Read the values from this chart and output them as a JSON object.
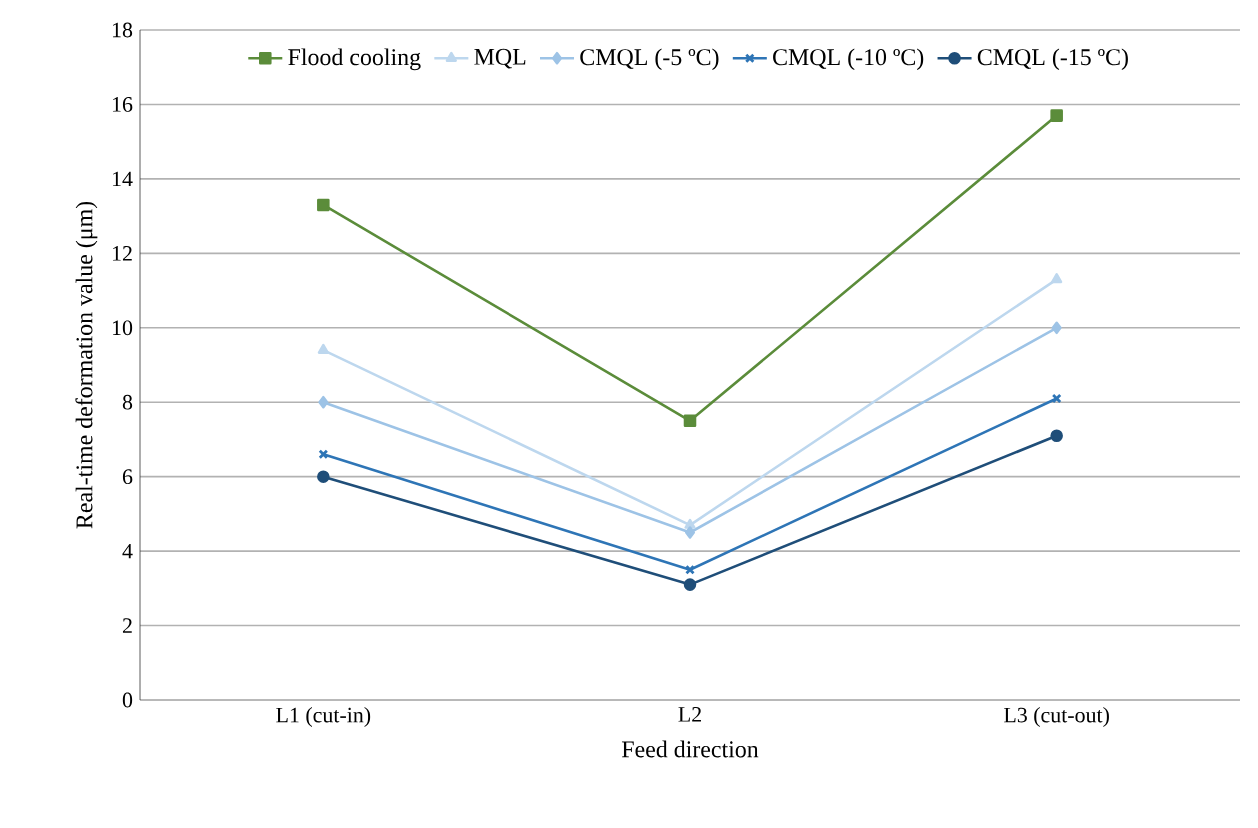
{
  "chart_data": {
    "type": "line",
    "xlabel": "Feed direction",
    "ylabel": "Real-time deformation value (μm)",
    "categories": [
      "L1 (cut-in)",
      "L2",
      "L3 (cut-out)"
    ],
    "series": [
      {
        "name": "Flood cooling",
        "color": "#5b8c3a",
        "marker": "square",
        "values": [
          13.3,
          7.5,
          15.7
        ]
      },
      {
        "name": "MQL",
        "color": "#bdd7ee",
        "marker": "triangle",
        "values": [
          9.4,
          4.7,
          11.3
        ]
      },
      {
        "name": "CMQL (-5 ºC)",
        "color": "#9dc3e6",
        "marker": "diamond",
        "values": [
          8.0,
          4.5,
          10.0
        ]
      },
      {
        "name": "CMQL (-10 ºC)",
        "color": "#2e75b6",
        "marker": "cross",
        "values": [
          6.6,
          3.5,
          8.1
        ]
      },
      {
        "name": "CMQL (-15 ºC)",
        "color": "#1f4e79",
        "marker": "circle",
        "values": [
          6.0,
          3.1,
          7.1
        ]
      }
    ],
    "ylim": [
      0,
      18
    ],
    "yticks": [
      0,
      2,
      4,
      6,
      8,
      10,
      12,
      14,
      16,
      18
    ],
    "grid": "y",
    "legend": "top",
    "line_style": "solid"
  }
}
